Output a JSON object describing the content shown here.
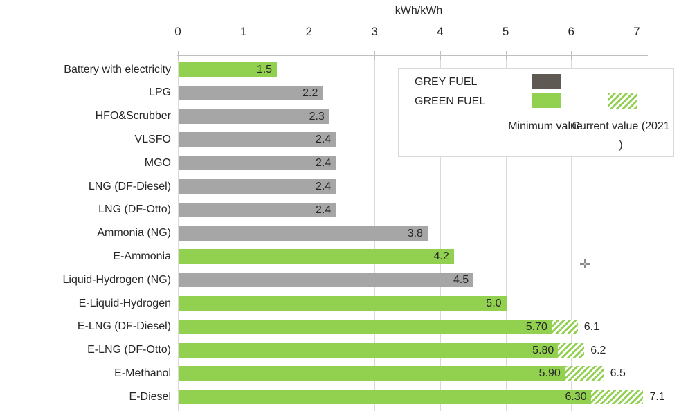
{
  "chart_data": {
    "type": "bar",
    "orientation": "horizontal",
    "axis_title": "kWh/kWh",
    "x_axis": {
      "min": 0,
      "max": 7,
      "ticks": [
        0,
        1,
        2,
        3,
        4,
        5,
        6,
        7
      ],
      "tick_labels": [
        "0",
        "1",
        "2",
        "3",
        "4",
        "5",
        "6",
        "7"
      ],
      "position": "top",
      "gridlines": true
    },
    "rows": [
      {
        "label": "Battery with electricity",
        "fuel": "green",
        "min": 1.5,
        "min_label": "1.5"
      },
      {
        "label": "LPG",
        "fuel": "grey",
        "min": 2.2,
        "min_label": "2.2"
      },
      {
        "label": "HFO&Scrubber",
        "fuel": "grey",
        "min": 2.3,
        "min_label": "2.3"
      },
      {
        "label": "VLSFO",
        "fuel": "grey",
        "min": 2.4,
        "min_label": "2.4"
      },
      {
        "label": "MGO",
        "fuel": "grey",
        "min": 2.4,
        "min_label": "2.4"
      },
      {
        "label": "LNG (DF-Diesel)",
        "fuel": "grey",
        "min": 2.4,
        "min_label": "2.4"
      },
      {
        "label": "LNG (DF-Otto)",
        "fuel": "grey",
        "min": 2.4,
        "min_label": "2.4"
      },
      {
        "label": "Ammonia (NG)",
        "fuel": "grey",
        "min": 3.8,
        "min_label": "3.8"
      },
      {
        "label": "E-Ammonia",
        "fuel": "green",
        "min": 4.2,
        "min_label": "4.2"
      },
      {
        "label": "Liquid-Hydrogen (NG)",
        "fuel": "grey",
        "min": 4.5,
        "min_label": "4.5"
      },
      {
        "label": "E-Liquid-Hydrogen",
        "fuel": "green",
        "min": 5.0,
        "min_label": "5.0"
      },
      {
        "label": "E-LNG (DF-Diesel)",
        "fuel": "green",
        "min": 5.7,
        "min_label": "5.70",
        "current": 6.1,
        "current_label": "6.1"
      },
      {
        "label": "E-LNG (DF-Otto)",
        "fuel": "green",
        "min": 5.8,
        "min_label": "5.80",
        "current": 6.2,
        "current_label": "6.2"
      },
      {
        "label": "E-Methanol",
        "fuel": "green",
        "min": 5.9,
        "min_label": "5.90",
        "current": 6.5,
        "current_label": "6.5"
      },
      {
        "label": "E-Diesel",
        "fuel": "green",
        "min": 6.3,
        "min_label": "6.30",
        "current": 7.1,
        "current_label": "7.1"
      }
    ],
    "legend": {
      "grey_fuel_label": "GREY FUEL",
      "green_fuel_label": "GREEN FUEL",
      "minimum_column_label": "Minimum value",
      "current_column_label": "Current value (2021 )"
    },
    "colors": {
      "green_fuel": "#92d050",
      "grey_fuel": "#a6a6a6",
      "grey_fuel_legend": "#5f5953",
      "gridline": "#d9d9d9",
      "axis_line": "#bfbfbf",
      "text": "#262626"
    }
  }
}
